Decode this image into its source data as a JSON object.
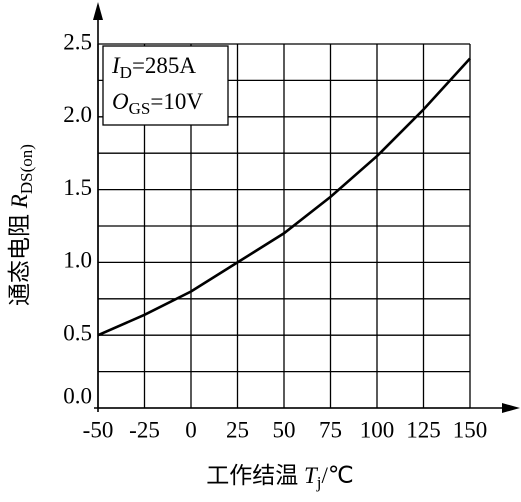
{
  "chart_data": {
    "type": "line",
    "x": [
      -50,
      -25,
      0,
      25,
      50,
      75,
      100,
      125,
      150
    ],
    "series": [
      {
        "name": null,
        "color": "#000000",
        "values": [
          0.5,
          0.64,
          0.8,
          1.0,
          1.2,
          1.45,
          1.73,
          2.05,
          2.4
        ]
      }
    ],
    "xlim": [
      -50,
      150
    ],
    "xticks": [
      -50,
      -25,
      0,
      25,
      50,
      75,
      100,
      125,
      150
    ],
    "ylim": [
      0,
      2.5
    ],
    "yticks": [
      {
        "value": 0,
        "label": "0.0"
      },
      0.5,
      {
        "value": 1,
        "label": "1.0"
      },
      1.5,
      {
        "value": 2,
        "label": "2.0"
      },
      2.5
    ],
    "minor_yticks": [
      0.25,
      0.75,
      1.25,
      1.75,
      2.25
    ],
    "grid": true,
    "xlabel": {
      "text": "工作结温 ",
      "symbol": "T",
      "sub": "j",
      "unit": "/℃"
    },
    "ylabel": {
      "text": "通态电阻 ",
      "symbol": "R",
      "sub": "DS(on)"
    },
    "annotations": [
      {
        "symbol": "I",
        "sub": "D",
        "text": "=285A"
      },
      {
        "symbol": "O",
        "sub": "GS",
        "text": "=10V"
      }
    ]
  }
}
